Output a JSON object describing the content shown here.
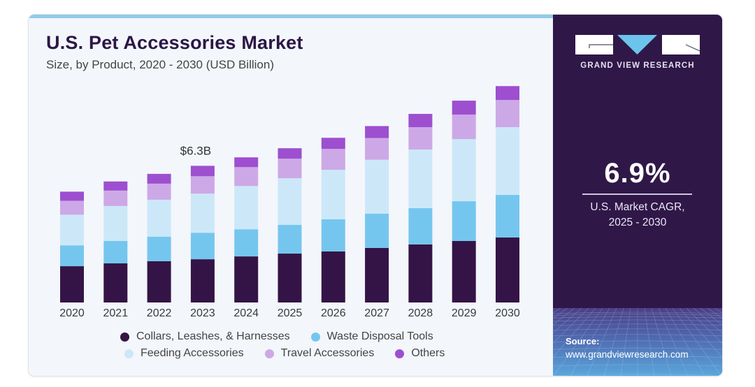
{
  "header": {
    "title": "U.S. Pet Accessories Market",
    "subtitle": "Size, by Product, 2020 - 2030 (USD Billion)"
  },
  "sidebar": {
    "brand": "GRAND VIEW RESEARCH",
    "cagr_value": "6.9%",
    "cagr_label_line1": "U.S. Market CAGR,",
    "cagr_label_line2": "2025 - 2030",
    "source_label": "Source:",
    "source_url": "www.grandviewresearch.com"
  },
  "colors": {
    "brand_dark": "#2f1848",
    "accent_blue": "#6cc4ec"
  },
  "chart_data": {
    "type": "bar",
    "stacked": true,
    "title": "U.S. Pet Accessories Market",
    "subtitle": "Size, by Product, 2020 - 2030 (USD Billion)",
    "xlabel": "",
    "ylabel": "",
    "ylim": [
      0,
      11
    ],
    "grid": false,
    "legend_position": "bottom",
    "categories": [
      "2020",
      "2021",
      "2022",
      "2023",
      "2024",
      "2025",
      "2026",
      "2027",
      "2028",
      "2029",
      "2030"
    ],
    "series": [
      {
        "name": "Collars, Leashes, & Harnesses",
        "color": "#341446",
        "values": [
          1.67,
          1.8,
          1.9,
          1.99,
          2.12,
          2.25,
          2.35,
          2.51,
          2.67,
          2.83,
          2.99
        ]
      },
      {
        "name": "Waste Disposal Tools",
        "color": "#75c6ee",
        "values": [
          0.96,
          1.03,
          1.13,
          1.22,
          1.25,
          1.32,
          1.48,
          1.58,
          1.67,
          1.83,
          1.96
        ]
      },
      {
        "name": "Feeding Accessories",
        "color": "#cce8f8",
        "values": [
          1.41,
          1.61,
          1.7,
          1.8,
          1.99,
          2.15,
          2.28,
          2.48,
          2.7,
          2.86,
          3.12
        ]
      },
      {
        "name": "Travel Accessories",
        "color": "#cda8e6",
        "values": [
          0.64,
          0.71,
          0.74,
          0.8,
          0.87,
          0.9,
          0.96,
          1.0,
          1.03,
          1.13,
          1.25
        ]
      },
      {
        "name": "Others",
        "color": "#9d4fd0",
        "values": [
          0.42,
          0.42,
          0.45,
          0.48,
          0.45,
          0.48,
          0.51,
          0.55,
          0.61,
          0.64,
          0.64
        ]
      }
    ],
    "annotations": [
      {
        "category": "2023",
        "text": "$6.3B"
      }
    ]
  }
}
